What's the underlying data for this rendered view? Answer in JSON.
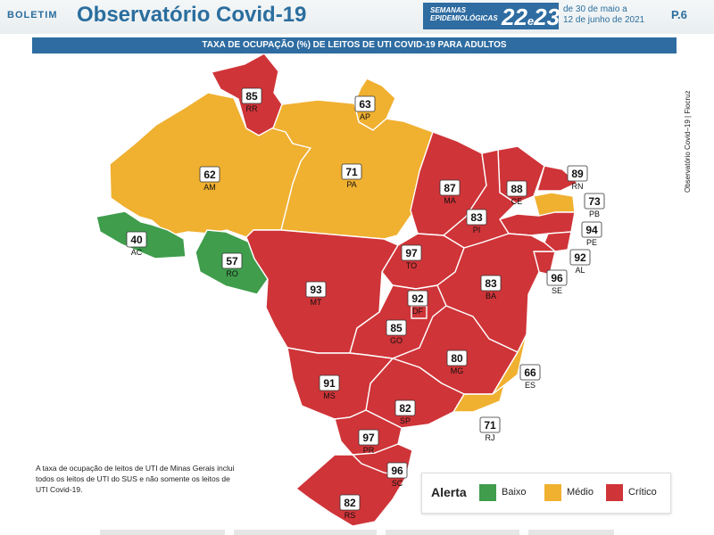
{
  "header": {
    "boletim": "BOLETIM",
    "title": "Observatório Covid-19",
    "semanas_line1": "SEMANAS",
    "semanas_line2": "EPIDEMIOLÓGICAS",
    "week_a": "22",
    "week_sep": "e",
    "week_b": "23",
    "dates_line1": "de 30 de maio a",
    "dates_line2": "12 de junho de 2021",
    "page": "P.6"
  },
  "subtitle": "TAXA DE OCUPAÇÃO (%) DE LEITOS DE UTI COVID-19 PARA ADULTOS",
  "side_credit": "Observatório Covid–19 | Fiocruz",
  "footnote": "A taxa de ocupação de leitos de UTI de Minas Gerais inclui todos os leitos de UTI do SUS e não somente os leitos de UTI Covid-19.",
  "legend": {
    "title": "Alerta",
    "items": [
      {
        "label": "Baixo",
        "color": "#3f9d4c"
      },
      {
        "label": "Médio",
        "color": "#f0b030"
      },
      {
        "label": "Crítico",
        "color": "#cf3438"
      }
    ]
  },
  "colors": {
    "low": "#3f9d4c",
    "medium": "#f0b030",
    "critical": "#cf3438",
    "border": "#ffffff",
    "brand": "#2e6ca1"
  },
  "states": [
    {
      "uf": "RR",
      "value": "85",
      "level": "critical"
    },
    {
      "uf": "AP",
      "value": "63",
      "level": "medium"
    },
    {
      "uf": "AM",
      "value": "62",
      "level": "medium"
    },
    {
      "uf": "PA",
      "value": "71",
      "level": "medium"
    },
    {
      "uf": "AC",
      "value": "40",
      "level": "low"
    },
    {
      "uf": "RO",
      "value": "57",
      "level": "low"
    },
    {
      "uf": "MT",
      "value": "93",
      "level": "critical"
    },
    {
      "uf": "MA",
      "value": "87",
      "level": "critical"
    },
    {
      "uf": "CE",
      "value": "88",
      "level": "critical"
    },
    {
      "uf": "RN",
      "value": "89",
      "level": "critical"
    },
    {
      "uf": "PB",
      "value": "73",
      "level": "medium"
    },
    {
      "uf": "PE",
      "value": "94",
      "level": "critical"
    },
    {
      "uf": "AL",
      "value": "92",
      "level": "critical"
    },
    {
      "uf": "SE",
      "value": "96",
      "level": "critical"
    },
    {
      "uf": "PI",
      "value": "83",
      "level": "critical"
    },
    {
      "uf": "TO",
      "value": "97",
      "level": "critical"
    },
    {
      "uf": "BA",
      "value": "83",
      "level": "critical"
    },
    {
      "uf": "DF",
      "value": "92",
      "level": "critical"
    },
    {
      "uf": "GO",
      "value": "85",
      "level": "critical"
    },
    {
      "uf": "MG",
      "value": "80",
      "level": "critical"
    },
    {
      "uf": "ES",
      "value": "66",
      "level": "medium"
    },
    {
      "uf": "RJ",
      "value": "71",
      "level": "medium"
    },
    {
      "uf": "SP",
      "value": "82",
      "level": "critical"
    },
    {
      "uf": "MS",
      "value": "91",
      "level": "critical"
    },
    {
      "uf": "PR",
      "value": "97",
      "level": "critical"
    },
    {
      "uf": "SC",
      "value": "96",
      "level": "critical"
    },
    {
      "uf": "RS",
      "value": "82",
      "level": "critical"
    }
  ]
}
